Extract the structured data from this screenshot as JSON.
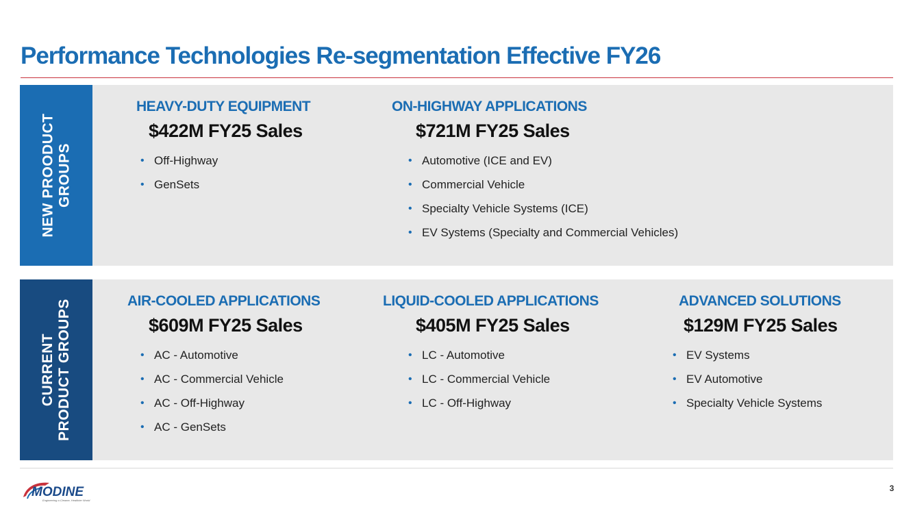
{
  "title": "Performance Technologies Re-segmentation Effective FY26",
  "new_groups": {
    "side_label": [
      "NEW PROODUCT",
      "GROUPS"
    ],
    "groups": [
      {
        "title": "HEAVY-DUTY EQUIPMENT",
        "sales": "$422M FY25 Sales",
        "items": [
          "Off-Highway",
          "GenSets"
        ]
      },
      {
        "title": "ON-HIGHWAY APPLICATIONS",
        "sales": "$721M FY25 Sales",
        "items": [
          "Automotive (ICE and EV)",
          "Commercial Vehicle",
          "Specialty Vehicle Systems (ICE)",
          "EV Systems (Specialty and Commercial Vehicles)"
        ]
      }
    ]
  },
  "current_groups": {
    "side_label": [
      "CURRENT",
      "PRODUCT GROUPS"
    ],
    "groups": [
      {
        "title": "AIR-COOLED APPLICATIONS",
        "sales": "$609M FY25 Sales",
        "items": [
          "AC - Automotive",
          "AC - Commercial Vehicle",
          "AC - Off-Highway",
          "AC - GenSets"
        ]
      },
      {
        "title": "LIQUID-COOLED APPLICATIONS",
        "sales": "$405M FY25 Sales",
        "items": [
          "LC - Automotive",
          "LC - Commercial Vehicle",
          "LC - Off-Highway"
        ]
      },
      {
        "title": "ADVANCED SOLUTIONS",
        "sales": "$129M FY25 Sales",
        "items": [
          "EV Systems",
          "EV Automotive",
          "Specialty Vehicle Systems"
        ]
      }
    ]
  },
  "footer": {
    "logo_text": "MODINE",
    "logo_tagline": "Engineering a Cleaner, Healthier World",
    "page_number": "3"
  },
  "colors": {
    "title_blue": "#1b6db3",
    "new_label_bg": "#1b6db3",
    "current_label_bg": "#184b80",
    "panel_bg": "#e8e8e8",
    "rule_red": "#c8323c"
  }
}
